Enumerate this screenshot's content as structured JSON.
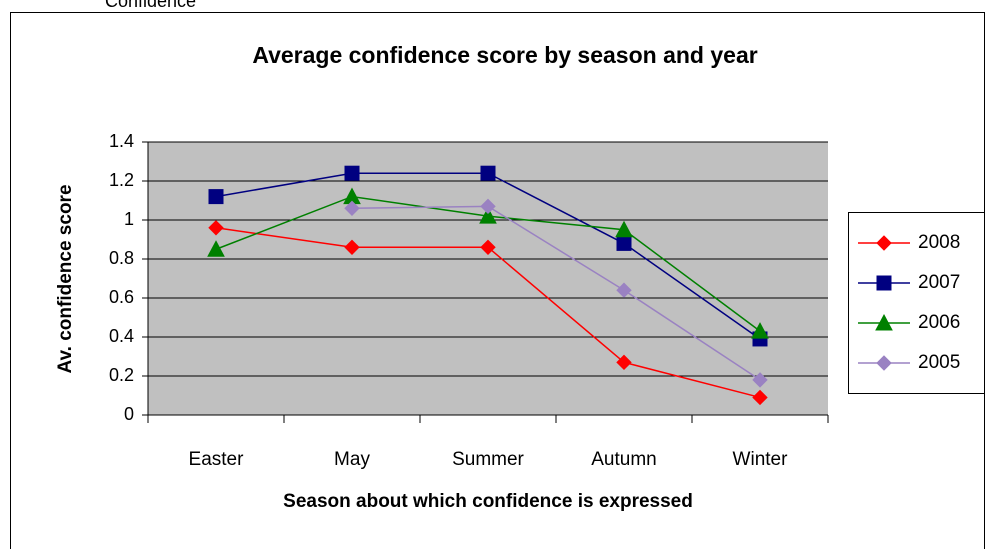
{
  "caption": "Confidence",
  "chart_data": {
    "type": "line",
    "title": "Average confidence score by season and year",
    "x_label": "Season about which confidence is expressed",
    "y_label": "Av. confidence  score",
    "categories": [
      "Easter",
      "May",
      "Summer",
      "Autumn",
      "Winter"
    ],
    "series": [
      {
        "name": "2008",
        "color": "#ff0000",
        "marker": "diamond",
        "values": [
          0.96,
          0.86,
          0.86,
          0.27,
          0.09
        ]
      },
      {
        "name": "2007",
        "color": "#000080",
        "marker": "square",
        "values": [
          1.12,
          1.24,
          1.24,
          0.88,
          0.39
        ]
      },
      {
        "name": "2006",
        "color": "#008000",
        "marker": "triangle",
        "values": [
          0.85,
          1.12,
          1.02,
          0.95,
          0.43
        ]
      },
      {
        "name": "2005",
        "color": "#9a82c2",
        "marker": "diamond",
        "values": [
          null,
          1.06,
          1.07,
          0.64,
          0.18
        ]
      }
    ],
    "ylim": [
      0,
      1.4
    ],
    "yticks": [
      0,
      0.2,
      0.4,
      0.6,
      0.8,
      1,
      1.2,
      1.4
    ],
    "grid": true,
    "plot_background": "#c0c0c0",
    "legend": "right"
  }
}
